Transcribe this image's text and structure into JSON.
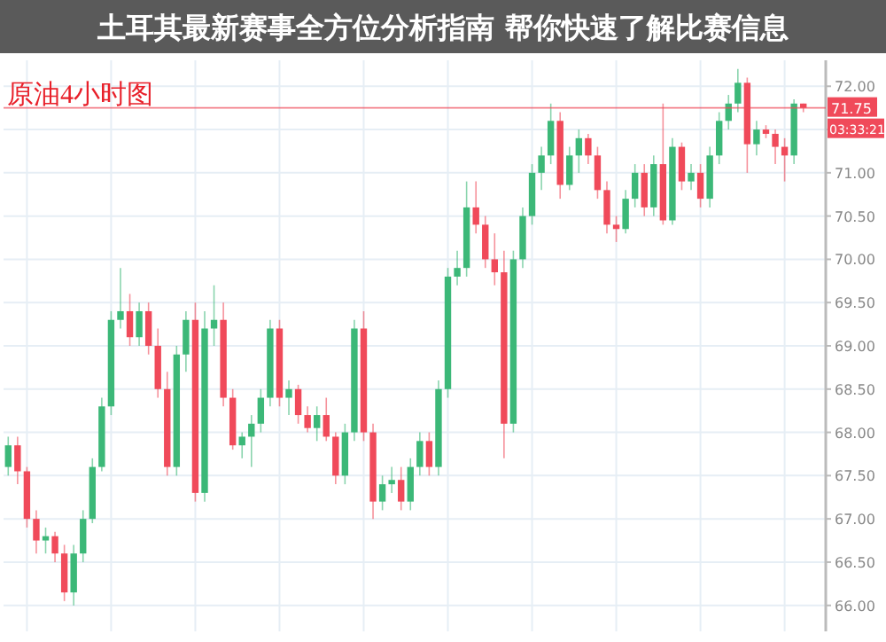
{
  "chart_data": {
    "type": "candlestick",
    "title": "土耳其最新赛事全方位分析指南 帮你快速了解比赛信息",
    "annotations": [
      "原油4小时图",
      "03:33:21"
    ],
    "categories": [
      null,
      null,
      null,
      null,
      null,
      null,
      null,
      null,
      null,
      null,
      null,
      null,
      null,
      null,
      null,
      null,
      null,
      null,
      null,
      null,
      null,
      null,
      null,
      null,
      null,
      null,
      null,
      null,
      null,
      null,
      null,
      null,
      null,
      null,
      null,
      null,
      null,
      null,
      null,
      null,
      null,
      null,
      null,
      null,
      null,
      null,
      null,
      null,
      null,
      null,
      null,
      null,
      null,
      null,
      null,
      null,
      null,
      null,
      null,
      null,
      null,
      null,
      null,
      null,
      null,
      null,
      null,
      null,
      null,
      null,
      null,
      null,
      null,
      null,
      null,
      null,
      null,
      null,
      null,
      null,
      null,
      null,
      null,
      null,
      null,
      null
    ],
    "ohlc": [
      [
        67.6,
        67.95,
        67.5,
        67.85
      ],
      [
        67.85,
        67.95,
        67.4,
        67.55
      ],
      [
        67.55,
        67.6,
        66.9,
        67.0
      ],
      [
        67.0,
        67.1,
        66.6,
        66.75
      ],
      [
        66.75,
        66.9,
        66.6,
        66.8
      ],
      [
        66.8,
        66.85,
        66.5,
        66.6
      ],
      [
        66.6,
        66.7,
        66.05,
        66.15
      ],
      [
        66.15,
        66.7,
        66.0,
        66.6
      ],
      [
        66.6,
        67.1,
        66.5,
        67.0
      ],
      [
        67.0,
        67.7,
        66.95,
        67.6
      ],
      [
        67.6,
        68.4,
        67.55,
        68.3
      ],
      [
        68.3,
        69.4,
        68.2,
        69.3
      ],
      [
        69.3,
        69.9,
        69.2,
        69.4
      ],
      [
        69.4,
        69.6,
        69.0,
        69.1
      ],
      [
        69.1,
        69.5,
        69.0,
        69.4
      ],
      [
        69.4,
        69.5,
        68.9,
        69.0
      ],
      [
        69.0,
        69.2,
        68.4,
        68.5
      ],
      [
        68.5,
        68.7,
        67.5,
        67.6
      ],
      [
        67.6,
        69.0,
        67.5,
        68.9
      ],
      [
        68.9,
        69.4,
        68.7,
        69.3
      ],
      [
        69.3,
        69.5,
        67.2,
        67.3
      ],
      [
        67.3,
        69.4,
        67.2,
        69.2
      ],
      [
        69.2,
        69.7,
        69.0,
        69.3
      ],
      [
        69.3,
        69.5,
        68.3,
        68.4
      ],
      [
        68.4,
        68.5,
        67.8,
        67.85
      ],
      [
        67.85,
        68.0,
        67.7,
        67.95
      ],
      [
        67.95,
        68.2,
        67.6,
        68.1
      ],
      [
        68.1,
        68.5,
        68.0,
        68.4
      ],
      [
        68.4,
        69.3,
        68.3,
        69.2
      ],
      [
        69.2,
        69.3,
        68.3,
        68.4
      ],
      [
        68.4,
        68.6,
        68.2,
        68.5
      ],
      [
        68.5,
        68.55,
        68.1,
        68.2
      ],
      [
        68.2,
        68.3,
        68.0,
        68.05
      ],
      [
        68.05,
        68.3,
        67.9,
        68.2
      ],
      [
        68.2,
        68.4,
        67.9,
        67.95
      ],
      [
        67.95,
        68.0,
        67.4,
        67.5
      ],
      [
        67.5,
        68.1,
        67.4,
        68.0
      ],
      [
        68.0,
        69.3,
        67.9,
        69.2
      ],
      [
        69.2,
        69.4,
        67.9,
        68.0
      ],
      [
        68.0,
        68.1,
        67.0,
        67.2
      ],
      [
        67.2,
        67.5,
        67.1,
        67.4
      ],
      [
        67.4,
        67.6,
        67.3,
        67.45
      ],
      [
        67.45,
        67.6,
        67.1,
        67.2
      ],
      [
        67.2,
        67.7,
        67.1,
        67.6
      ],
      [
        67.6,
        68.0,
        67.5,
        67.9
      ],
      [
        67.9,
        68.0,
        67.5,
        67.6
      ],
      [
        67.6,
        68.6,
        67.5,
        68.5
      ],
      [
        68.5,
        69.9,
        68.4,
        69.8
      ],
      [
        69.8,
        70.1,
        69.7,
        69.9
      ],
      [
        69.9,
        70.9,
        69.8,
        70.6
      ],
      [
        70.6,
        70.9,
        70.3,
        70.4
      ],
      [
        70.4,
        70.5,
        69.9,
        70.0
      ],
      [
        70.0,
        70.3,
        69.7,
        69.85
      ],
      [
        69.85,
        70.1,
        67.7,
        68.1
      ],
      [
        68.1,
        70.1,
        68.0,
        70.0
      ],
      [
        70.0,
        70.6,
        69.9,
        70.5
      ],
      [
        70.5,
        71.1,
        70.4,
        71.0
      ],
      [
        71.0,
        71.3,
        70.8,
        71.2
      ],
      [
        71.2,
        71.8,
        71.1,
        71.6
      ],
      [
        71.6,
        71.7,
        70.7,
        70.86
      ],
      [
        70.86,
        71.3,
        70.8,
        71.2
      ],
      [
        71.2,
        71.5,
        71.0,
        71.4
      ],
      [
        71.4,
        71.45,
        71.1,
        71.2
      ],
      [
        71.2,
        71.3,
        70.7,
        70.8
      ],
      [
        70.8,
        70.9,
        70.3,
        70.4
      ],
      [
        70.4,
        70.5,
        70.2,
        70.35
      ],
      [
        70.35,
        70.8,
        70.3,
        70.7
      ],
      [
        70.7,
        71.1,
        70.6,
        71.0
      ],
      [
        71.0,
        71.1,
        70.5,
        70.6
      ],
      [
        70.6,
        71.2,
        70.5,
        71.1
      ],
      [
        71.1,
        71.8,
        70.4,
        70.45
      ],
      [
        70.45,
        71.4,
        70.4,
        71.3
      ],
      [
        71.3,
        71.35,
        70.8,
        70.9
      ],
      [
        70.9,
        71.1,
        70.8,
        71.0
      ],
      [
        71.0,
        71.1,
        70.6,
        70.7
      ],
      [
        70.7,
        71.3,
        70.6,
        71.2
      ],
      [
        71.2,
        71.7,
        71.1,
        71.6
      ],
      [
        71.6,
        71.9,
        71.5,
        71.8
      ],
      [
        71.8,
        72.2,
        71.7,
        72.04
      ],
      [
        72.04,
        72.1,
        71.0,
        71.33
      ],
      [
        71.33,
        71.6,
        71.2,
        71.5
      ],
      [
        71.5,
        71.55,
        71.4,
        71.45
      ],
      [
        71.45,
        71.5,
        71.1,
        71.3
      ],
      [
        71.3,
        71.4,
        70.9,
        71.2
      ],
      [
        71.2,
        71.85,
        71.1,
        71.8
      ],
      [
        71.8,
        71.8,
        71.7,
        71.75
      ]
    ],
    "ylim": [
      65.7,
      72.3
    ],
    "yticks": [
      {
        "value": 66,
        "label": "66.00"
      },
      {
        "value": 66.5,
        "label": "66.50"
      },
      {
        "value": 67,
        "label": "67.00"
      },
      {
        "value": 67.5,
        "label": "67.50"
      },
      {
        "value": 68,
        "label": "68.00"
      },
      {
        "value": 68.5,
        "label": "68.50"
      },
      {
        "value": 69,
        "label": "69.00"
      },
      {
        "value": 69.5,
        "label": "69.50"
      },
      {
        "value": 70,
        "label": "70.00"
      },
      {
        "value": 70.5,
        "label": "70.50"
      },
      {
        "value": 71,
        "label": "71.00"
      },
      {
        "value": 71.5,
        "label": null
      },
      {
        "value": 72,
        "label": "72.00"
      }
    ],
    "ref_lines": [
      {
        "axis": "y",
        "value": 71.75,
        "label": "71.75",
        "color": "#f04a5a"
      }
    ],
    "grid": true
  }
}
